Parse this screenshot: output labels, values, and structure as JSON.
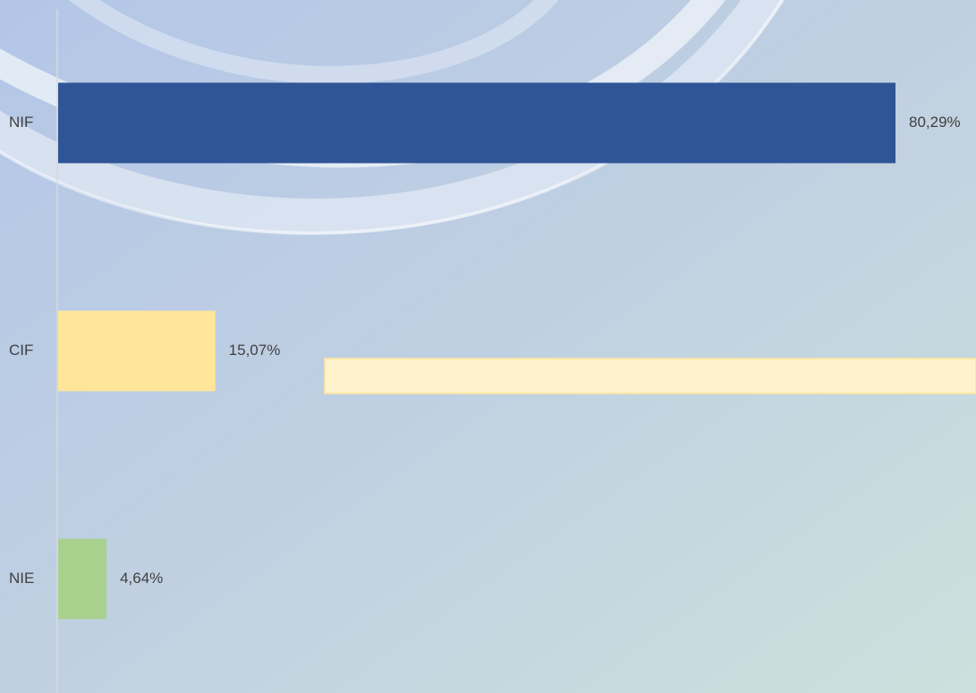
{
  "chart_data": {
    "type": "barh",
    "categories": [
      "NIF",
      "CIF",
      "NIE"
    ],
    "values": [
      80.29,
      15.07,
      4.64
    ],
    "value_labels": [
      "80,29%",
      "15,07%",
      "4,64%"
    ],
    "colors": [
      "#2f5597",
      "#ffe699",
      "#a9d18e"
    ]
  }
}
